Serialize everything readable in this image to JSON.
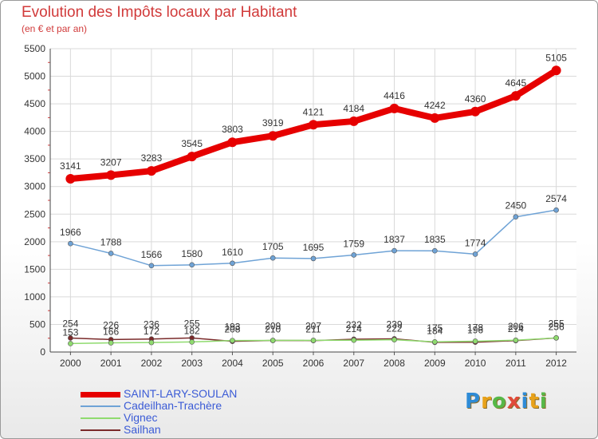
{
  "header": {
    "title": "Evolution des Impôts locaux par Habitant",
    "subtitle": "(en € et par an)"
  },
  "logo": {
    "letters": [
      "P",
      "r",
      "o",
      "x",
      "i",
      "t",
      "i"
    ],
    "colors": [
      "#2e8bd6",
      "#e8a21a",
      "#56b848",
      "#e04b3a",
      "#2e8bd6",
      "#e8a21a",
      "#56b848"
    ]
  },
  "chart_data": {
    "type": "line",
    "x": [
      "2000",
      "2001",
      "2002",
      "2003",
      "2004",
      "2005",
      "2006",
      "2007",
      "2008",
      "2009",
      "2010",
      "2011",
      "2012"
    ],
    "ylim": [
      0,
      5500
    ],
    "yticks": [
      "0",
      "500",
      "1000",
      "1500",
      "2000",
      "2500",
      "3000",
      "3500",
      "4000",
      "4500",
      "5000",
      "5500"
    ],
    "grid": true,
    "legend_position": "bottom-left",
    "series": [
      {
        "name": "SAINT-LARY-SOULAN",
        "color": "#e60000",
        "values": [
          3141,
          3207,
          3283,
          3545,
          3803,
          3919,
          4121,
          4184,
          4416,
          4242,
          4360,
          4645,
          5105
        ]
      },
      {
        "name": "Cadeilhan-Trachère",
        "color": "#6fa3d6",
        "values": [
          1966,
          1788,
          1566,
          1580,
          1610,
          1705,
          1695,
          1759,
          1837,
          1835,
          1774,
          2450,
          2574
        ]
      },
      {
        "name": "Vignec",
        "color": "#8fdb6f",
        "values": [
          153,
          166,
          172,
          182,
          208,
          210,
          211,
          214,
          222,
          184,
          196,
          214,
          256
        ]
      },
      {
        "name": "Sailhan",
        "color": "#7a2a2a",
        "values": [
          254,
          226,
          236,
          255,
          193,
          209,
          207,
          232,
          239,
          175,
          178,
          206,
          255
        ]
      }
    ],
    "data_labels": [
      [
        "3141",
        "3207",
        "3283",
        "3545",
        "3803",
        "3919",
        "4121",
        "4184",
        "4416",
        "4242",
        "4360",
        "4645",
        "5105"
      ],
      [
        "1966",
        "1788",
        "1566",
        "1580",
        "1610",
        "1705",
        "1695",
        "1759",
        "1837",
        "1835",
        "1774",
        "2450",
        "2574"
      ],
      [
        "153",
        "166",
        "172",
        "182",
        "208",
        "210",
        "211",
        "214",
        "222",
        "184",
        "196",
        "214",
        "256"
      ],
      [
        "254",
        "226",
        "236",
        "255",
        "193",
        "209",
        "207",
        "232",
        "239",
        "175",
        "178",
        "206",
        "255"
      ]
    ]
  }
}
